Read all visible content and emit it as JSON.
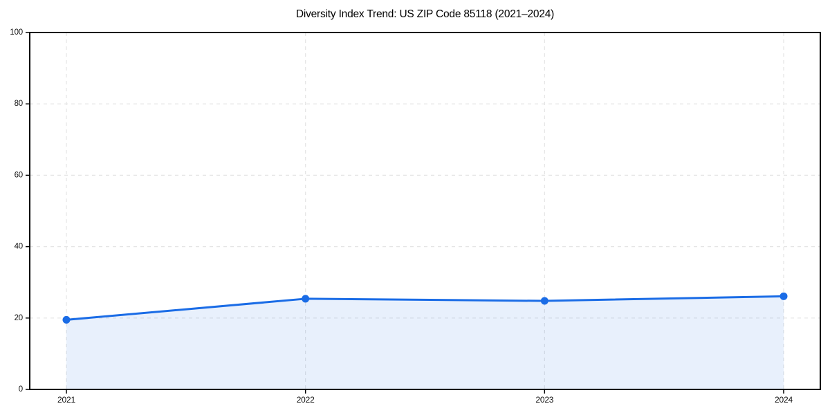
{
  "chart_data": {
    "type": "area",
    "title": "Diversity Index Trend: US ZIP Code 85118 (2021–2024)",
    "x": [
      2021,
      2022,
      2023,
      2024
    ],
    "series": [
      {
        "name": "Diversity Index",
        "values": [
          19.5,
          25.4,
          24.8,
          26.1
        ]
      }
    ],
    "xlabel": "",
    "ylabel": "",
    "ylim": [
      0,
      100
    ],
    "yticks": [
      0,
      20,
      40,
      60,
      80,
      100
    ],
    "grid": true,
    "grid_style": "dashed",
    "legend": "none",
    "marker": "circle",
    "colors": {
      "line": "#1a6ce6",
      "fill": "#1a6ce6",
      "fill_opacity": "0.10",
      "grid": "#e4e4e4",
      "spine": "#000000",
      "tick_text": "#111111"
    }
  }
}
